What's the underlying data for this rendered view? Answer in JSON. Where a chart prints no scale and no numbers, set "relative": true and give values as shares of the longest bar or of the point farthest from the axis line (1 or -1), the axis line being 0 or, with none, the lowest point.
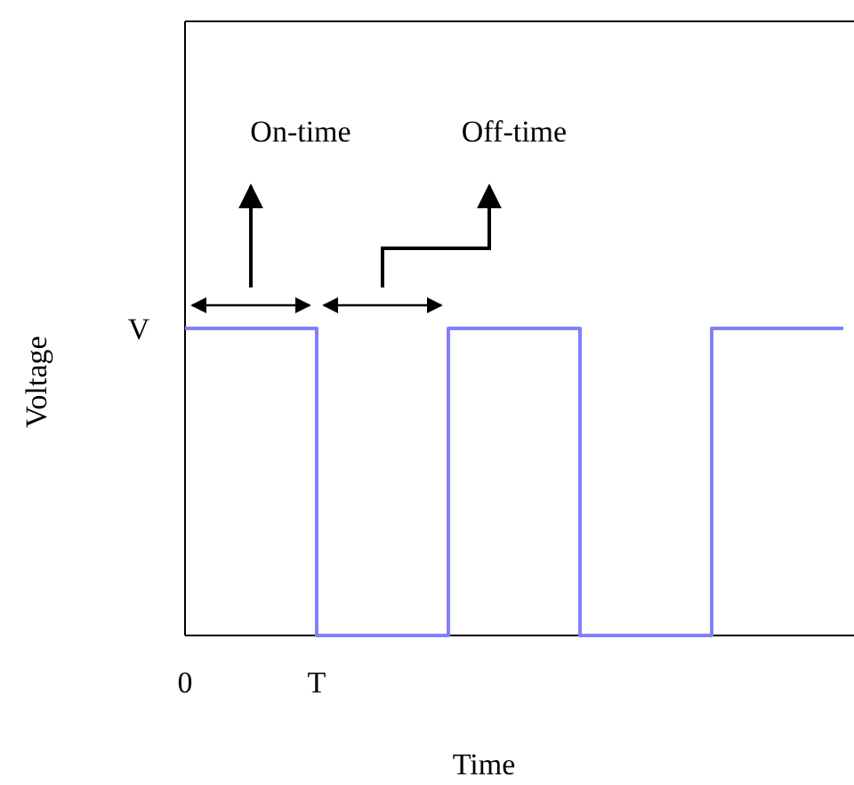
{
  "chart_data": {
    "type": "step",
    "xlabel": "Time",
    "ylabel": "Voltage",
    "relative": true,
    "categories": [
      "0",
      "T",
      null,
      null,
      null,
      null
    ],
    "series": [
      {
        "color": "#8080ff",
        "values": [
          1,
          0,
          1,
          0,
          1,
          1
        ]
      }
    ],
    "marker": "none",
    "line_style": "solid",
    "annotations": [
      "V",
      "On-time",
      "Off-time"
    ]
  }
}
